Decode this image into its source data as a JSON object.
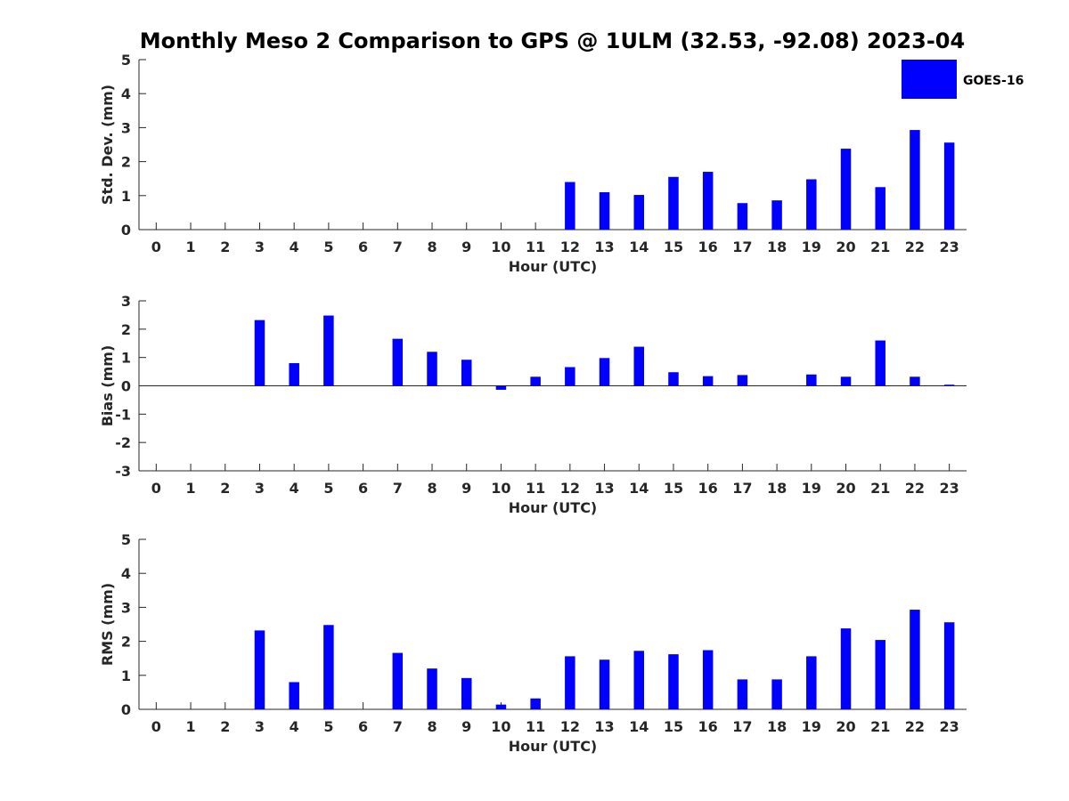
{
  "chart_data": {
    "type": "bar",
    "title": "Monthly Meso 2 Comparison to GPS @ 1ULM (32.53, -92.08) 2023-04",
    "legend": {
      "label": "GOES-16",
      "placement": "top-right",
      "color": "#0000ff"
    },
    "bar_color": "#0000ff",
    "grid": false,
    "categories": [
      0,
      1,
      2,
      3,
      4,
      5,
      6,
      7,
      8,
      9,
      10,
      11,
      12,
      13,
      14,
      15,
      16,
      17,
      18,
      19,
      20,
      21,
      22,
      23
    ],
    "panels": [
      {
        "xlabel": "Hour (UTC)",
        "ylabel": "Std. Dev. (mm)",
        "ylim": [
          0,
          5
        ],
        "yticks": [
          0,
          1,
          2,
          3,
          4,
          5
        ],
        "values": [
          null,
          null,
          null,
          null,
          null,
          null,
          null,
          null,
          null,
          null,
          null,
          null,
          1.4,
          1.1,
          1.02,
          1.55,
          1.7,
          0.78,
          0.86,
          1.48,
          2.38,
          1.25,
          2.93,
          2.56
        ]
      },
      {
        "xlabel": "Hour (UTC)",
        "ylabel": "Bias (mm)",
        "ylim": [
          -3,
          3
        ],
        "yticks": [
          -3,
          -2,
          -1,
          0,
          1,
          2,
          3
        ],
        "values": [
          null,
          null,
          null,
          2.32,
          0.8,
          2.48,
          null,
          1.66,
          1.2,
          0.92,
          -0.14,
          0.32,
          0.66,
          0.98,
          1.38,
          0.48,
          0.34,
          0.38,
          null,
          0.4,
          0.32,
          1.6,
          0.32,
          0.04
        ]
      },
      {
        "xlabel": "Hour (UTC)",
        "ylabel": "RMS (mm)",
        "ylim": [
          0,
          5
        ],
        "yticks": [
          0,
          1,
          2,
          3,
          4,
          5
        ],
        "values": [
          null,
          null,
          null,
          2.32,
          0.8,
          2.48,
          null,
          1.66,
          1.2,
          0.92,
          0.14,
          0.32,
          1.56,
          1.46,
          1.72,
          1.62,
          1.74,
          0.88,
          0.88,
          1.56,
          2.38,
          2.04,
          2.93,
          2.56
        ]
      }
    ]
  }
}
